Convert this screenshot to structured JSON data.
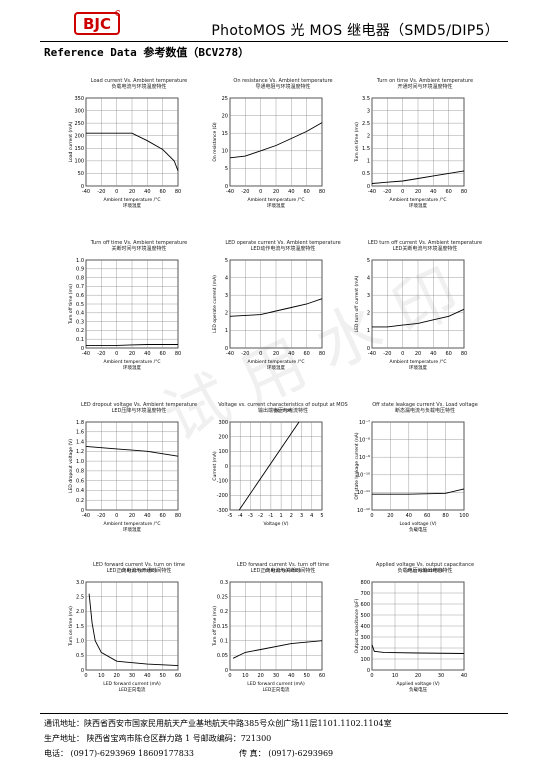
{
  "header": {
    "logo_text": "BJC",
    "title": "PhotoMOS 光 MOS 继电器（SMD5/DIP5）"
  },
  "section_title": "Reference Data 参考数值（BCV278）",
  "watermark": "试用水印",
  "charts": [
    {
      "title": "Load current Vs. Ambient temperature",
      "subtitle": "负载电流与环境温度特性",
      "ylabel": "Load current (mA)",
      "xlabel": "Ambient temperature /°C",
      "xlabel2": "环境温度",
      "x_ticks": [
        "-40",
        "-20",
        "0",
        "20",
        "40",
        "60",
        "80"
      ],
      "y_ticks": [
        "0",
        "50",
        "100",
        "150",
        "200",
        "250",
        "300",
        "350"
      ],
      "xlim": [
        -40,
        80
      ],
      "ylim": [
        0,
        350
      ],
      "series": [
        {
          "x": [
            -40,
            20,
            40,
            60,
            75,
            80
          ],
          "y": [
            210,
            210,
            180,
            145,
            100,
            60
          ]
        }
      ]
    },
    {
      "title": "On resistance Vs. Ambient temperature",
      "subtitle": "导通电阻与环境温度特性",
      "ylabel": "On resistance (Ω)",
      "xlabel": "Ambient temperature /°C",
      "xlabel2": "环境温度",
      "x_ticks": [
        "-40",
        "-20",
        "0",
        "20",
        "40",
        "60",
        "80"
      ],
      "y_ticks": [
        "0",
        "5",
        "10",
        "15",
        "20",
        "25"
      ],
      "xlim": [
        -40,
        80
      ],
      "ylim": [
        0,
        25
      ],
      "series": [
        {
          "x": [
            -40,
            -20,
            0,
            20,
            40,
            60,
            80
          ],
          "y": [
            8,
            8.5,
            10,
            11.5,
            13.5,
            15.5,
            18
          ]
        }
      ]
    },
    {
      "title": "Turn on time Vs. Ambient temperature",
      "subtitle": "开通时间与环境温度特性",
      "ylabel": "Turn on time (ms)",
      "xlabel": "Ambient temperature /°C",
      "xlabel2": "环境温度",
      "x_ticks": [
        "-40",
        "-20",
        "0",
        "20",
        "40",
        "60",
        "80"
      ],
      "y_ticks": [
        "0",
        "0.5",
        "1",
        "1.5",
        "2",
        "2.5",
        "3",
        "3.5"
      ],
      "xlim": [
        -40,
        80
      ],
      "ylim": [
        0,
        3.5
      ],
      "series": [
        {
          "x": [
            -40,
            -20,
            0,
            20,
            40,
            60,
            80
          ],
          "y": [
            0.1,
            0.15,
            0.2,
            0.3,
            0.4,
            0.5,
            0.6
          ]
        }
      ]
    },
    {
      "title": "Turn off time Vs. Ambient temperature",
      "subtitle": "关断时间与环境温度特性",
      "ylabel": "Turn off time (ms)",
      "xlabel": "Ambient temperature /°C",
      "xlabel2": "环境温度",
      "x_ticks": [
        "-40",
        "-20",
        "0",
        "20",
        "40",
        "60",
        "80"
      ],
      "y_ticks": [
        "0",
        "0.1",
        "0.2",
        "0.3",
        "0.4",
        "0.5",
        "0.6",
        "0.7",
        "0.8",
        "0.9",
        "1.0"
      ],
      "xlim": [
        -40,
        80
      ],
      "ylim": [
        0,
        1
      ],
      "series": [
        {
          "x": [
            -40,
            0,
            40,
            80
          ],
          "y": [
            0.03,
            0.03,
            0.04,
            0.04
          ]
        }
      ]
    },
    {
      "title": "LED operate current Vs. Ambient temperature",
      "subtitle": "LED动作电流与环境温度特性",
      "ylabel": "LED operate current (mA)",
      "xlabel": "Ambient temperature /°C",
      "xlabel2": "环境温度",
      "x_ticks": [
        "-40",
        "-20",
        "0",
        "20",
        "40",
        "60",
        "80"
      ],
      "y_ticks": [
        "0",
        "1",
        "2",
        "3",
        "4",
        "5"
      ],
      "xlim": [
        -40,
        80
      ],
      "ylim": [
        0,
        5
      ],
      "series": [
        {
          "x": [
            -40,
            -20,
            0,
            20,
            40,
            60,
            80
          ],
          "y": [
            1.8,
            1.85,
            1.9,
            2.1,
            2.3,
            2.5,
            2.8
          ]
        }
      ]
    },
    {
      "title": "LED turn off current Vs. Ambient temperature",
      "subtitle": "LED关断电流与环境温度特性",
      "ylabel": "LED turn off current (mA)",
      "xlabel": "Ambient temperature /°C",
      "xlabel2": "环境温度",
      "x_ticks": [
        "-40",
        "-20",
        "0",
        "20",
        "40",
        "60",
        "80"
      ],
      "y_ticks": [
        "0",
        "1",
        "2",
        "3",
        "4",
        "5"
      ],
      "xlim": [
        -40,
        80
      ],
      "ylim": [
        0,
        5
      ],
      "series": [
        {
          "x": [
            -40,
            -20,
            0,
            20,
            40,
            60,
            70,
            80
          ],
          "y": [
            1.2,
            1.2,
            1.3,
            1.4,
            1.6,
            1.8,
            2.0,
            2.2
          ]
        }
      ]
    },
    {
      "title": "LED dropout voltage Vs. Ambient temperature",
      "subtitle": "LED压降与环境温度特性",
      "ylabel": "LED dropout voltage (V)",
      "xlabel": "Ambient temperature /°C",
      "xlabel2": "环境温度",
      "x_ticks": [
        "-40",
        "-20",
        "0",
        "20",
        "40",
        "60",
        "80"
      ],
      "y_ticks": [
        "0",
        "0.2",
        "0.4",
        "0.6",
        "0.8",
        "1.0",
        "1.2",
        "1.4",
        "1.6",
        "1.8"
      ],
      "xlim": [
        -40,
        80
      ],
      "ylim": [
        0,
        1.8
      ],
      "series": [
        {
          "x": [
            -40,
            0,
            40,
            80
          ],
          "y": [
            1.3,
            1.25,
            1.2,
            1.1
          ]
        }
      ]
    },
    {
      "title": "Voltage vs. current characteristics of output at MOS portion",
      "subtitle": "输出端电压与电流特性",
      "ylabel": "Current (mA)",
      "xlabel": "Voltage (V)",
      "xlabel2": "",
      "x_ticks": [
        "-5",
        "-4",
        "-3",
        "-2",
        "-1",
        "1",
        "2",
        "3",
        "4",
        "5"
      ],
      "y_ticks": [
        "-300",
        "-200",
        "-100",
        "0",
        "100",
        "200",
        "300"
      ],
      "xlim": [
        -5,
        5
      ],
      "ylim": [
        -300,
        300
      ],
      "series": [
        {
          "x": [
            -4,
            2.5
          ],
          "y": [
            -300,
            300
          ]
        }
      ]
    },
    {
      "title": "Off state leakage current Vs. Load voltage",
      "subtitle": "断态漏电流与负载电压特性",
      "ylabel": "Off state leakage current (nA)",
      "xlabel": "Load voltage (V)",
      "xlabel2": "负载电压",
      "x_ticks": [
        "0",
        "20",
        "40",
        "60",
        "80",
        "100"
      ],
      "y_ticks": [
        "10⁻¹²",
        "10⁻¹¹",
        "10⁻¹⁰",
        "10⁻⁹",
        "10⁻⁸",
        "10⁻⁷"
      ],
      "xlim": [
        0,
        100
      ],
      "ylim": [
        0,
        5
      ],
      "series": [
        {
          "x": [
            0,
            40,
            80,
            100
          ],
          "y": [
            0.9,
            0.9,
            0.95,
            1.2
          ]
        }
      ]
    },
    {
      "title": "LED forward current Vs. turn on time characteristics",
      "subtitle": "LED正向电流与开通时间特性",
      "ylabel": "Turn on time (ms)",
      "xlabel": "LED forward current (mA)",
      "xlabel2": "LED正向电流",
      "x_ticks": [
        "0",
        "10",
        "20",
        "30",
        "40",
        "50",
        "60"
      ],
      "y_ticks": [
        "0",
        "0.5",
        "1.0",
        "1.5",
        "2.0",
        "2.5",
        "3.0"
      ],
      "xlim": [
        0,
        60
      ],
      "ylim": [
        0,
        3
      ],
      "series": [
        {
          "x": [
            2,
            4,
            6,
            10,
            20,
            40,
            60
          ],
          "y": [
            2.6,
            1.6,
            1.0,
            0.6,
            0.3,
            0.2,
            0.15
          ]
        }
      ]
    },
    {
      "title": "LED forward current Vs. turn off time characteristics",
      "subtitle": "LED正向电流与关断时间特性",
      "ylabel": "Turn off time (ms)",
      "xlabel": "LED forward current (mA)",
      "xlabel2": "LED正向电流",
      "x_ticks": [
        "0",
        "10",
        "20",
        "30",
        "40",
        "50",
        "60"
      ],
      "y_ticks": [
        "0",
        "0.05",
        "0.1",
        "0.15",
        "0.2",
        "0.25",
        "0.3"
      ],
      "xlim": [
        0,
        60
      ],
      "ylim": [
        0,
        0.3
      ],
      "series": [
        {
          "x": [
            2,
            10,
            20,
            40,
            60
          ],
          "y": [
            0.04,
            0.06,
            0.07,
            0.09,
            0.1
          ]
        }
      ]
    },
    {
      "title": "Applied voltage Vs. output capacitance characteristics",
      "subtitle": "负载电压与输出电容特性",
      "ylabel": "Output capacitance (pF)",
      "xlabel": "Applied voltage (V)",
      "xlabel2": "负载电压",
      "x_ticks": [
        "0",
        "10",
        "20",
        "30",
        "40"
      ],
      "y_ticks": [
        "0",
        "100",
        "200",
        "300",
        "400",
        "500",
        "600",
        "700",
        "800"
      ],
      "xlim": [
        0,
        40
      ],
      "ylim": [
        0,
        800
      ],
      "series": [
        {
          "x": [
            0,
            1,
            5,
            20,
            40
          ],
          "y": [
            230,
            170,
            160,
            155,
            150
          ]
        }
      ]
    }
  ],
  "footer": {
    "line1": "通讯地址：陕西省西安市国家民用航天产业基地航天中路385号众创广场11层1101.1102.1104室",
    "line2": "生产地址：  陕西省宝鸡市陈仓区群力路 1 号邮政编码：721300",
    "line3_label": "电话：",
    "line3_phone": "(0917)-6293969   18609177833",
    "line3_fax_label": "传       真：",
    "line3_fax": "(0917)-6293969"
  }
}
